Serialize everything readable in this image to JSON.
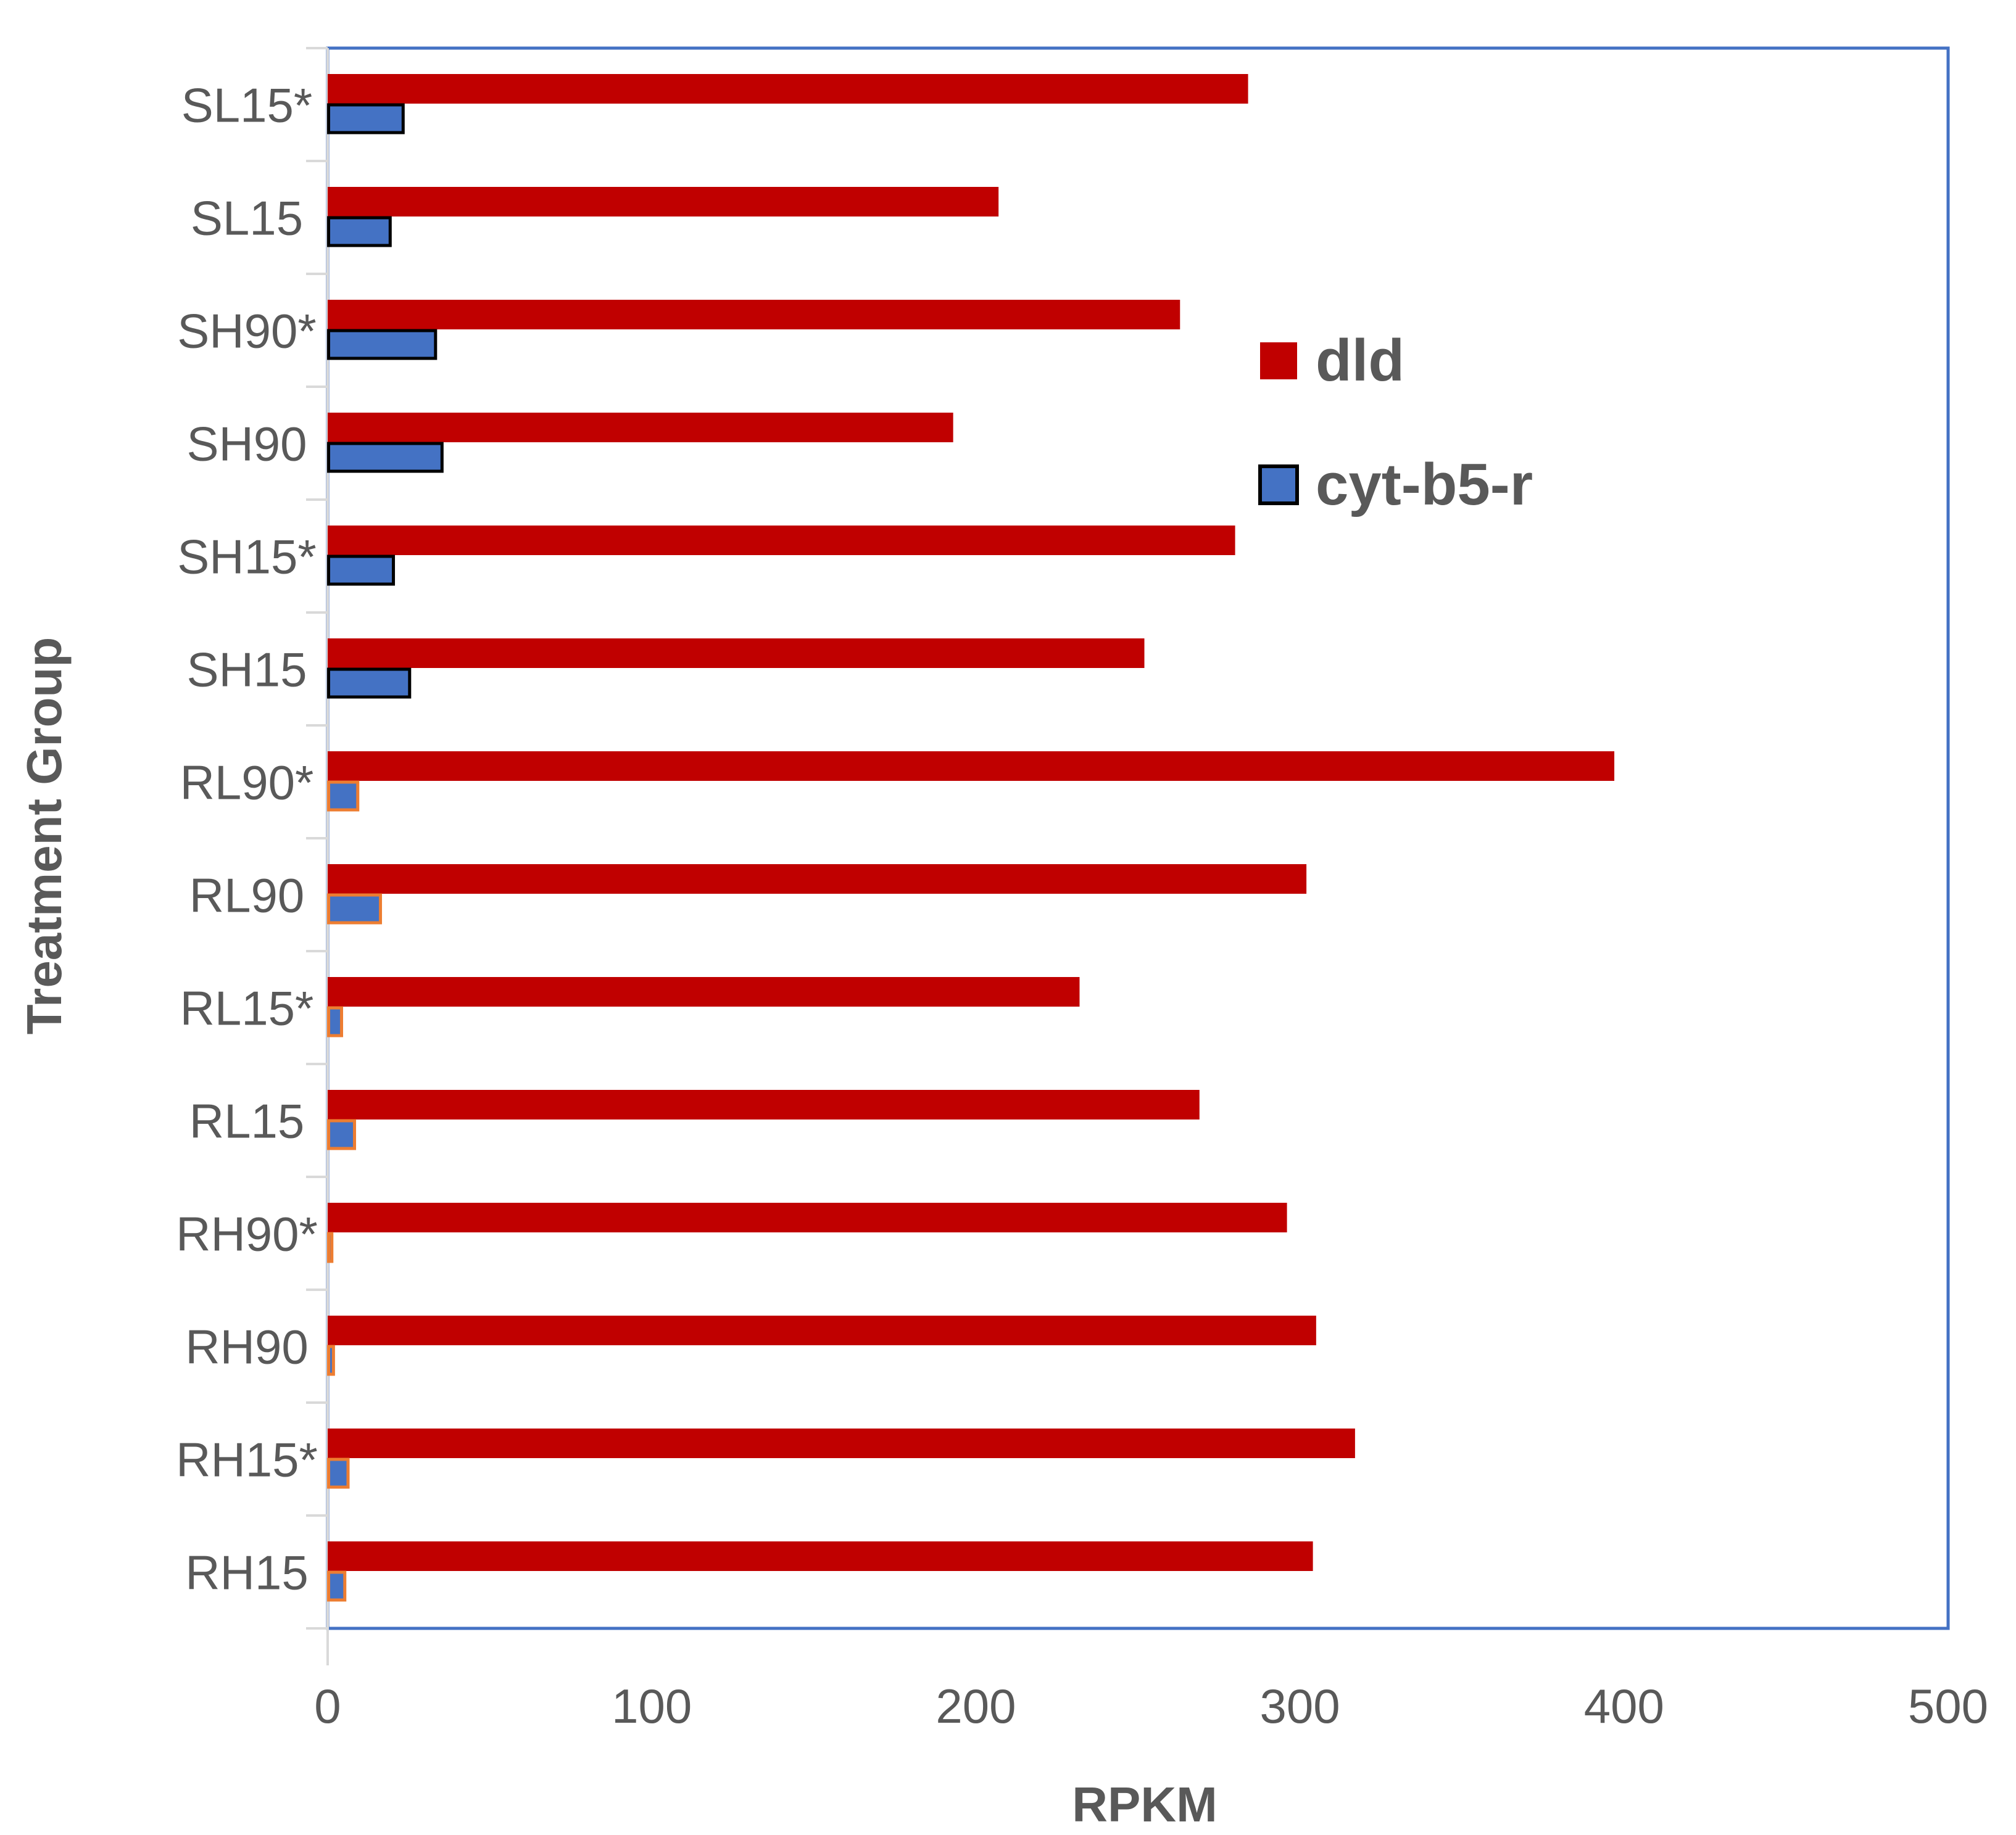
{
  "chart_data": {
    "type": "bar",
    "orientation": "horizontal",
    "title": "",
    "xlabel": "RPKM",
    "ylabel": "Treatment Group",
    "xlim": [
      0,
      500
    ],
    "xticks": [
      0,
      100,
      200,
      300,
      400,
      500
    ],
    "grid": false,
    "legend_position": "top-right",
    "categories": [
      "SL15*",
      "SL15",
      "SH90*",
      "SH90",
      "SH15*",
      "SH15",
      "RL90*",
      "RL90",
      "RL15*",
      "RL15",
      "RH90*",
      "RH90",
      "RH15*",
      "RH15"
    ],
    "series": [
      {
        "name": "dld",
        "color": "#C00000",
        "values": [
          284,
          207,
          263,
          193,
          280,
          252,
          397,
          302,
          232,
          269,
          296,
          305,
          317,
          304
        ]
      },
      {
        "name": "cyt-b5-r",
        "color": "#4472C4",
        "edge_colors": [
          "#000000",
          "#000000",
          "#000000",
          "#000000",
          "#000000",
          "#000000",
          "#ED7D31",
          "#ED7D31",
          "#ED7D31",
          "#ED7D31",
          "#ED7D31",
          "#ED7D31",
          "#ED7D31",
          "#ED7D31"
        ],
        "values": [
          23,
          19,
          33,
          35,
          20,
          25,
          9,
          16,
          4,
          8,
          1,
          1.5,
          6,
          5
        ]
      }
    ],
    "frame_color": "#4472C4",
    "axis_color": "#D9D9D9"
  }
}
